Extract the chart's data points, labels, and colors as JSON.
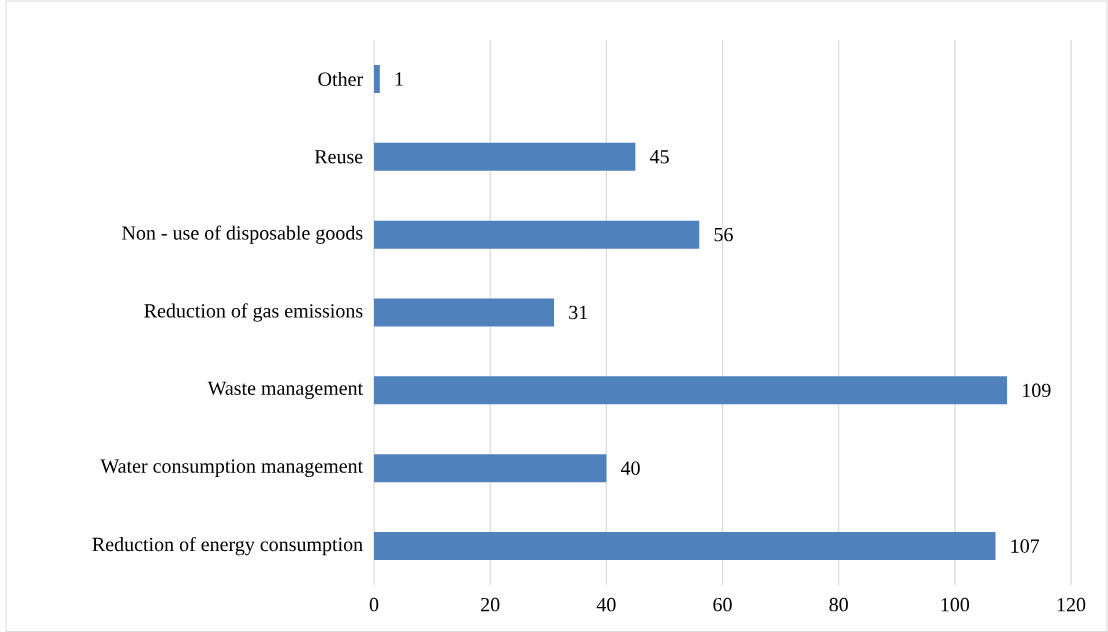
{
  "chart_data": {
    "type": "bar",
    "orientation": "horizontal",
    "categories": [
      "Other",
      "Reuse",
      "Non - use of disposable goods",
      "Reduction of gas emissions",
      "Waste management",
      "Water consumption management",
      "Reduction of energy consumption"
    ],
    "values": [
      1,
      45,
      56,
      31,
      109,
      40,
      107
    ],
    "color": "#4f81bd",
    "xlim": [
      0,
      120
    ],
    "xticks": [
      0,
      20,
      40,
      60,
      80,
      100,
      120
    ],
    "grid": "x",
    "data_labels": true
  }
}
